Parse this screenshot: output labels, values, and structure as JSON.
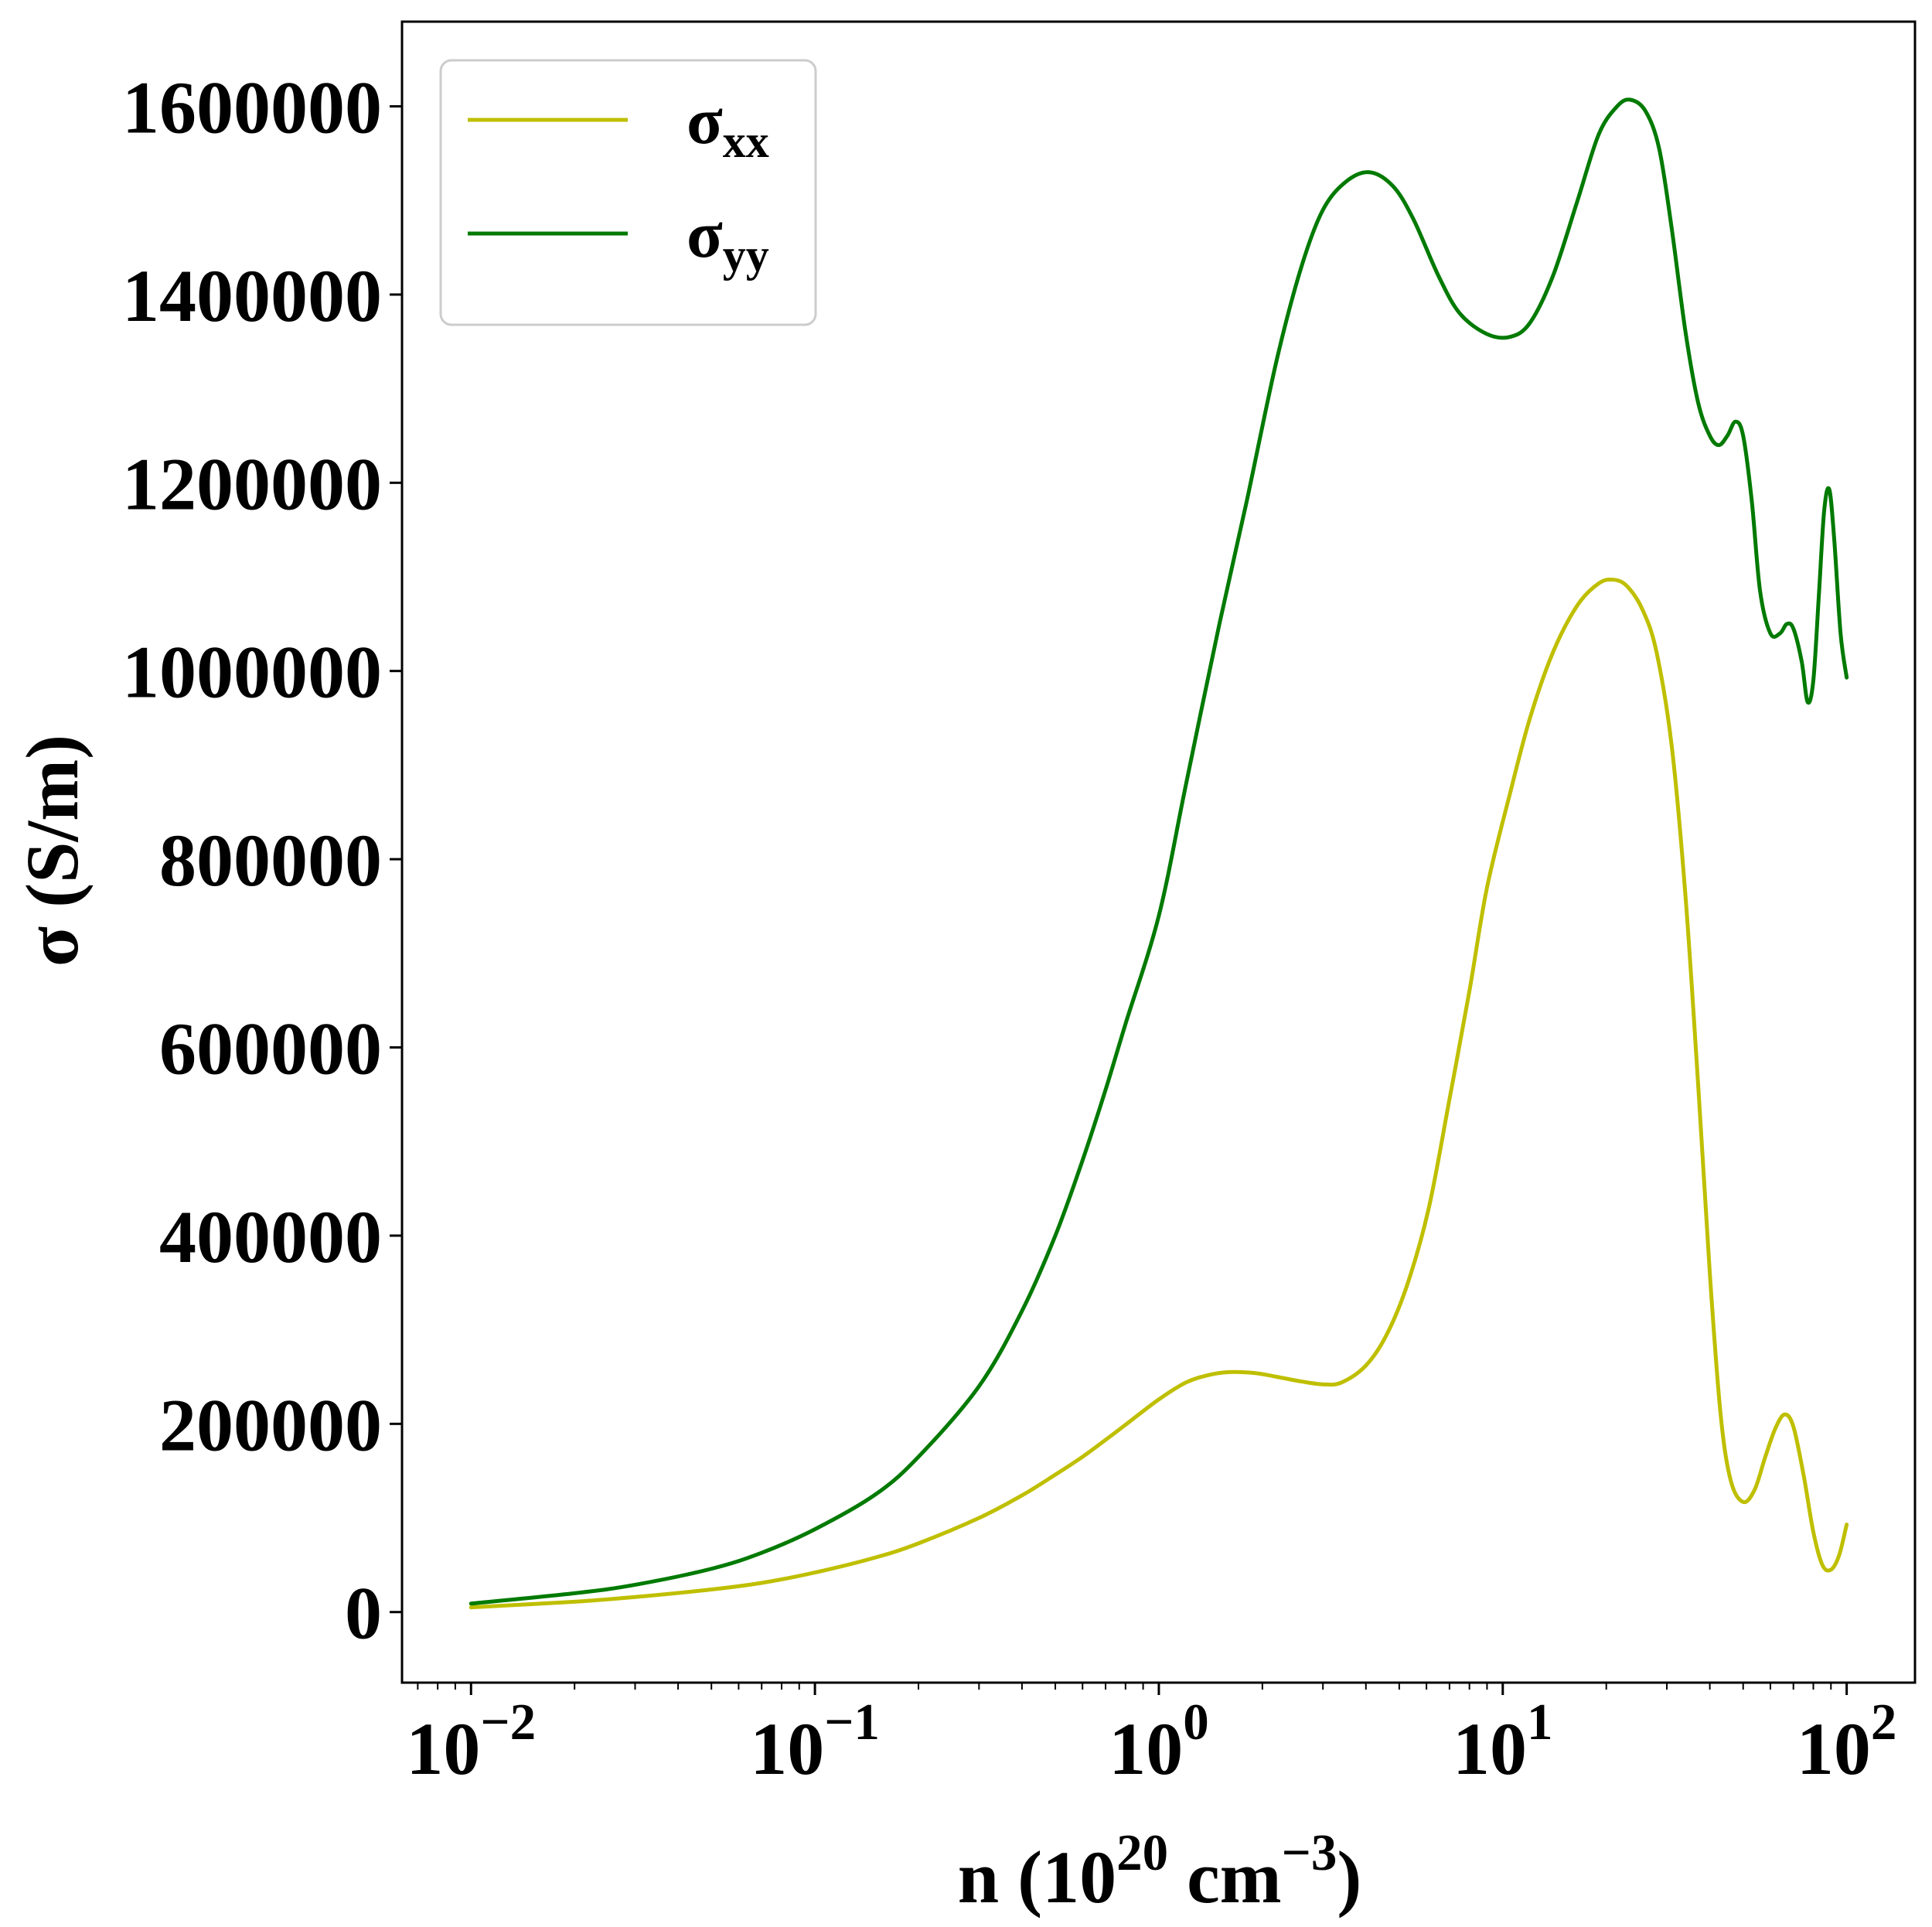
{
  "chart_data": {
    "type": "line",
    "title": "",
    "xscale": "log",
    "xlim": [
      0.0063,
      158
    ],
    "ylim": [
      -75000,
      1690000
    ],
    "grid": false,
    "legend_position": "top-left",
    "xlabel": {
      "main": "n (10",
      "exp": "20",
      "unit": " cm",
      "unit_exp": "−3",
      "close": ")"
    },
    "ylabel": "σ (S/m)",
    "x_ticks": [
      {
        "value": 0.01,
        "base": "10",
        "exp": "−2"
      },
      {
        "value": 0.1,
        "base": "10",
        "exp": "−1"
      },
      {
        "value": 1,
        "base": "10",
        "exp": "0"
      },
      {
        "value": 10,
        "base": "10",
        "exp": "1"
      },
      {
        "value": 100,
        "base": "10",
        "exp": "2"
      }
    ],
    "y_ticks": [
      {
        "value": 0,
        "label": "0"
      },
      {
        "value": 200000,
        "label": "200000"
      },
      {
        "value": 400000,
        "label": "400000"
      },
      {
        "value": 600000,
        "label": "600000"
      },
      {
        "value": 800000,
        "label": "800000"
      },
      {
        "value": 1000000,
        "label": "1000000"
      },
      {
        "value": 1200000,
        "label": "1200000"
      },
      {
        "value": 1400000,
        "label": "1400000"
      },
      {
        "value": 1600000,
        "label": "1600000"
      }
    ],
    "series": [
      {
        "name": "σxx",
        "name_base": "σ",
        "name_sub": "xx",
        "color": "#bfbf00",
        "points": [
          [
            0.01,
            5000
          ],
          [
            0.02,
            11000
          ],
          [
            0.03,
            16000
          ],
          [
            0.05,
            24000
          ],
          [
            0.07,
            31000
          ],
          [
            0.1,
            42000
          ],
          [
            0.15,
            58000
          ],
          [
            0.2,
            73000
          ],
          [
            0.3,
            100000
          ],
          [
            0.4,
            124000
          ],
          [
            0.5,
            146000
          ],
          [
            0.6,
            165000
          ],
          [
            0.7,
            183000
          ],
          [
            0.8,
            199000
          ],
          [
            1.0,
            226000
          ],
          [
            1.2,
            244000
          ],
          [
            1.4,
            252000
          ],
          [
            1.6,
            255000
          ],
          [
            1.9,
            254000
          ],
          [
            2.2,
            250000
          ],
          [
            2.6,
            245000
          ],
          [
            3.0,
            242000
          ],
          [
            3.4,
            244000
          ],
          [
            4.0,
            262000
          ],
          [
            4.6,
            295000
          ],
          [
            5.3,
            350000
          ],
          [
            6.1,
            430000
          ],
          [
            7.0,
            545000
          ],
          [
            8.0,
            660000
          ],
          [
            9.0,
            770000
          ],
          [
            10.5,
            870000
          ],
          [
            12.0,
            950000
          ],
          [
            14.0,
            1020000
          ],
          [
            16.5,
            1070000
          ],
          [
            19.0,
            1093000
          ],
          [
            21.0,
            1097000
          ],
          [
            23.0,
            1090000
          ],
          [
            25.5,
            1065000
          ],
          [
            28.0,
            1020000
          ],
          [
            31.0,
            920000
          ],
          [
            34.0,
            760000
          ],
          [
            37.0,
            560000
          ],
          [
            40.0,
            360000
          ],
          [
            43.0,
            210000
          ],
          [
            46.0,
            140000
          ],
          [
            50.0,
            117000
          ],
          [
            54.0,
            130000
          ],
          [
            58.0,
            165000
          ],
          [
            62.0,
            195000
          ],
          [
            66.0,
            210000
          ],
          [
            70.0,
            197000
          ],
          [
            75.0,
            145000
          ],
          [
            80.0,
            85000
          ],
          [
            85.0,
            50000
          ],
          [
            90.0,
            45000
          ],
          [
            95.0,
            60000
          ],
          [
            100.0,
            93000
          ]
        ]
      },
      {
        "name": "σyy",
        "name_base": "σ",
        "name_sub": "yy",
        "color": "#007a00",
        "points": [
          [
            0.01,
            9000
          ],
          [
            0.02,
            20000
          ],
          [
            0.03,
            29000
          ],
          [
            0.05,
            46000
          ],
          [
            0.07,
            63000
          ],
          [
            0.1,
            88000
          ],
          [
            0.15,
            125000
          ],
          [
            0.2,
            165000
          ],
          [
            0.3,
            240000
          ],
          [
            0.4,
            320000
          ],
          [
            0.5,
            400000
          ],
          [
            0.6,
            480000
          ],
          [
            0.7,
            555000
          ],
          [
            0.8,
            625000
          ],
          [
            1.0,
            740000
          ],
          [
            1.2,
            880000
          ],
          [
            1.5,
            1050000
          ],
          [
            1.8,
            1180000
          ],
          [
            2.2,
            1330000
          ],
          [
            2.6,
            1430000
          ],
          [
            3.0,
            1490000
          ],
          [
            3.5,
            1520000
          ],
          [
            4.1,
            1530000
          ],
          [
            4.8,
            1515000
          ],
          [
            5.5,
            1480000
          ],
          [
            6.5,
            1420000
          ],
          [
            7.5,
            1380000
          ],
          [
            9.0,
            1358000
          ],
          [
            10.5,
            1355000
          ],
          [
            12.0,
            1370000
          ],
          [
            14.0,
            1420000
          ],
          [
            16.5,
            1500000
          ],
          [
            19.0,
            1570000
          ],
          [
            21.5,
            1600000
          ],
          [
            23.5,
            1607000
          ],
          [
            26.0,
            1595000
          ],
          [
            28.5,
            1555000
          ],
          [
            31.0,
            1470000
          ],
          [
            34.0,
            1360000
          ],
          [
            37.0,
            1285000
          ],
          [
            40.0,
            1250000
          ],
          [
            42.5,
            1240000
          ],
          [
            45.0,
            1250000
          ],
          [
            47.5,
            1265000
          ],
          [
            50.0,
            1250000
          ],
          [
            53.0,
            1180000
          ],
          [
            56.0,
            1085000
          ],
          [
            60.0,
            1040000
          ],
          [
            64.0,
            1040000
          ],
          [
            67.0,
            1050000
          ],
          [
            70.0,
            1045000
          ],
          [
            74.0,
            1010000
          ],
          [
            77.0,
            967000
          ],
          [
            80.0,
            990000
          ],
          [
            83.0,
            1080000
          ],
          [
            86.0,
            1170000
          ],
          [
            89.0,
            1193000
          ],
          [
            92.0,
            1140000
          ],
          [
            96.0,
            1040000
          ],
          [
            100.0,
            993000
          ]
        ]
      }
    ]
  }
}
